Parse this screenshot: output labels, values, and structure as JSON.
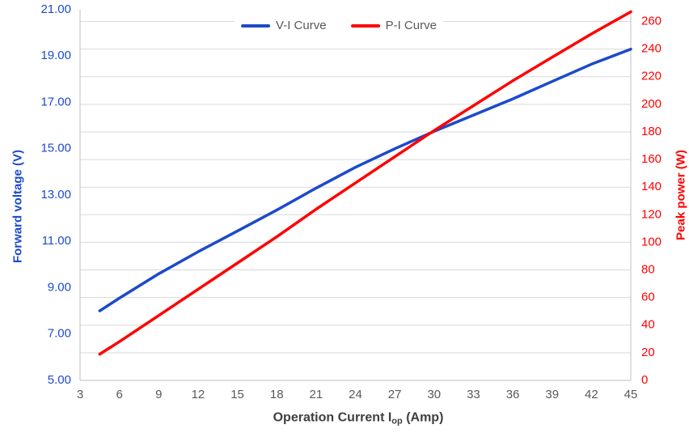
{
  "chart_data": {
    "type": "line",
    "title": "",
    "xlabel_text": "Operation Current Iop (Amp)",
    "xlabel_parts": {
      "pre": "Operation Current I",
      "sub": "op",
      "post": " (Amp)"
    },
    "ylabel_left": "Forward voltage (V)",
    "ylabel_right": "Peak power (W)",
    "xlim": [
      3,
      45
    ],
    "x_ticks": [
      3,
      6,
      9,
      12,
      15,
      18,
      21,
      24,
      27,
      30,
      33,
      36,
      39,
      42,
      45
    ],
    "ylim_left": [
      5,
      21
    ],
    "left_ticks": [
      "5.00",
      "7.00",
      "9.00",
      "11.00",
      "13.00",
      "15.00",
      "17.00",
      "19.00",
      "21.00"
    ],
    "ylim_right": [
      0,
      268.5
    ],
    "right_ticks": [
      0,
      20,
      40,
      60,
      80,
      100,
      120,
      140,
      160,
      180,
      200,
      220,
      240,
      260
    ],
    "grid": "horizontal gridlines at every 20 W of right axis",
    "legend_position": "top-center",
    "x": [
      4.5,
      6,
      9,
      12,
      15,
      18,
      21,
      24,
      27,
      30,
      33,
      36,
      39,
      42,
      45
    ],
    "series": [
      {
        "name": "V-I Curve",
        "axis": "left",
        "color": "#1C4ACA",
        "values": [
          8.0,
          8.55,
          9.6,
          10.55,
          11.45,
          12.35,
          13.3,
          14.2,
          15.0,
          15.75,
          16.45,
          17.15,
          17.9,
          18.65,
          19.3
        ]
      },
      {
        "name": "P-I Curve",
        "axis": "right",
        "color": "#FF0000",
        "values": [
          19,
          28,
          47,
          66,
          85,
          104,
          124,
          143,
          162,
          181,
          199,
          217,
          234,
          251,
          267
        ]
      }
    ]
  },
  "colors": {
    "left_axis_text": "#1C4ACA",
    "right_axis_text": "#FF0000",
    "x_tick_text": "#595959",
    "x_title_text": "#3F3F3F",
    "gridline": "#D9D9D9",
    "axis_line": "#BFBFBF",
    "legend_text": "#595959",
    "background": "#FFFFFF"
  }
}
